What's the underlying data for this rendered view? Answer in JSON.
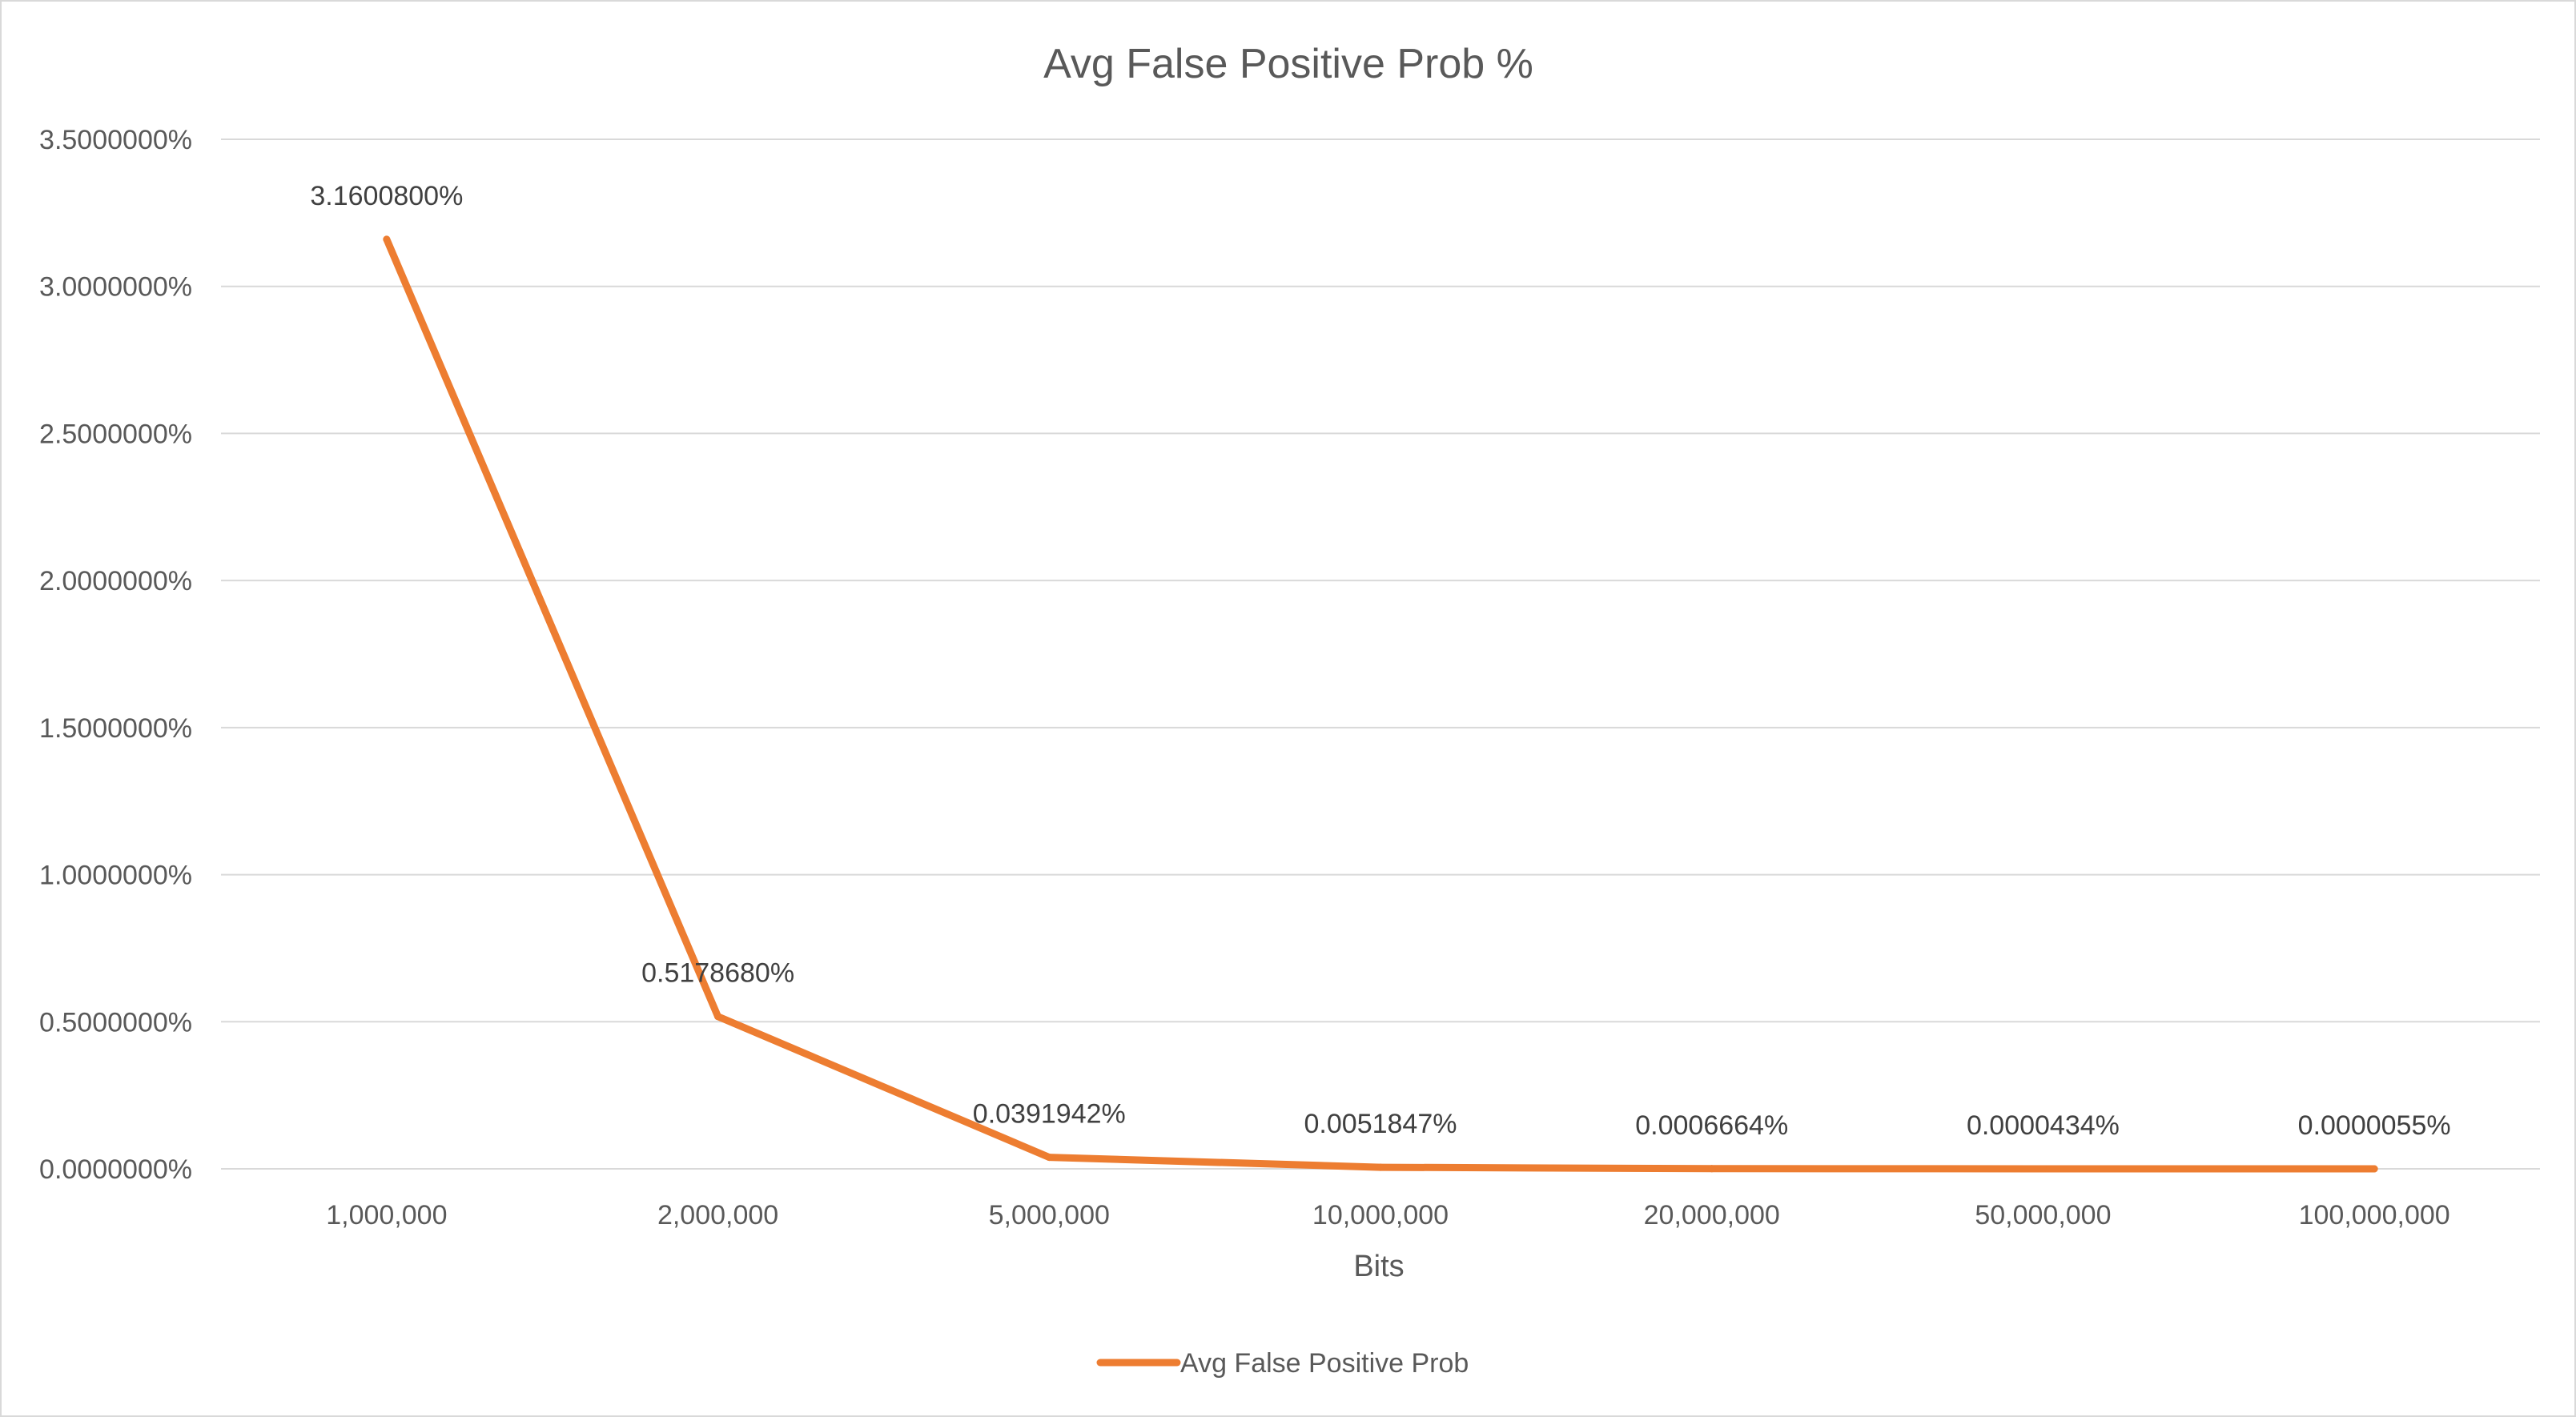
{
  "chart_data": {
    "type": "line",
    "title": "Avg False Positive Prob %",
    "xlabel": "Bits",
    "ylabel": "",
    "categories": [
      "1,000,000",
      "2,000,000",
      "5,000,000",
      "10,000,000",
      "20,000,000",
      "50,000,000",
      "100,000,000"
    ],
    "series": [
      {
        "name": "Avg False Positive Prob",
        "values": [
          3.16008,
          0.517868,
          0.0391942,
          0.0051847,
          0.0006664,
          4.34e-05,
          5.5e-06
        ],
        "data_labels": [
          "3.1600800%",
          "0.5178680%",
          "0.0391942%",
          "0.0051847%",
          "0.0006664%",
          "0.0000434%",
          "0.0000055%"
        ],
        "color": "#ED7D31"
      }
    ],
    "ylim": [
      0,
      3.5
    ],
    "yticks": [
      0,
      0.5,
      1.0,
      1.5,
      2.0,
      2.5,
      3.0,
      3.5
    ],
    "ytick_labels": [
      "0.0000000%",
      "0.5000000%",
      "1.0000000%",
      "1.5000000%",
      "2.0000000%",
      "2.5000000%",
      "3.0000000%",
      "3.5000000%"
    ],
    "grid": true,
    "legend": "bottom",
    "colors": {
      "gridline": "#d9d9d9",
      "axis_text": "#595959",
      "label_text": "#404040"
    }
  }
}
